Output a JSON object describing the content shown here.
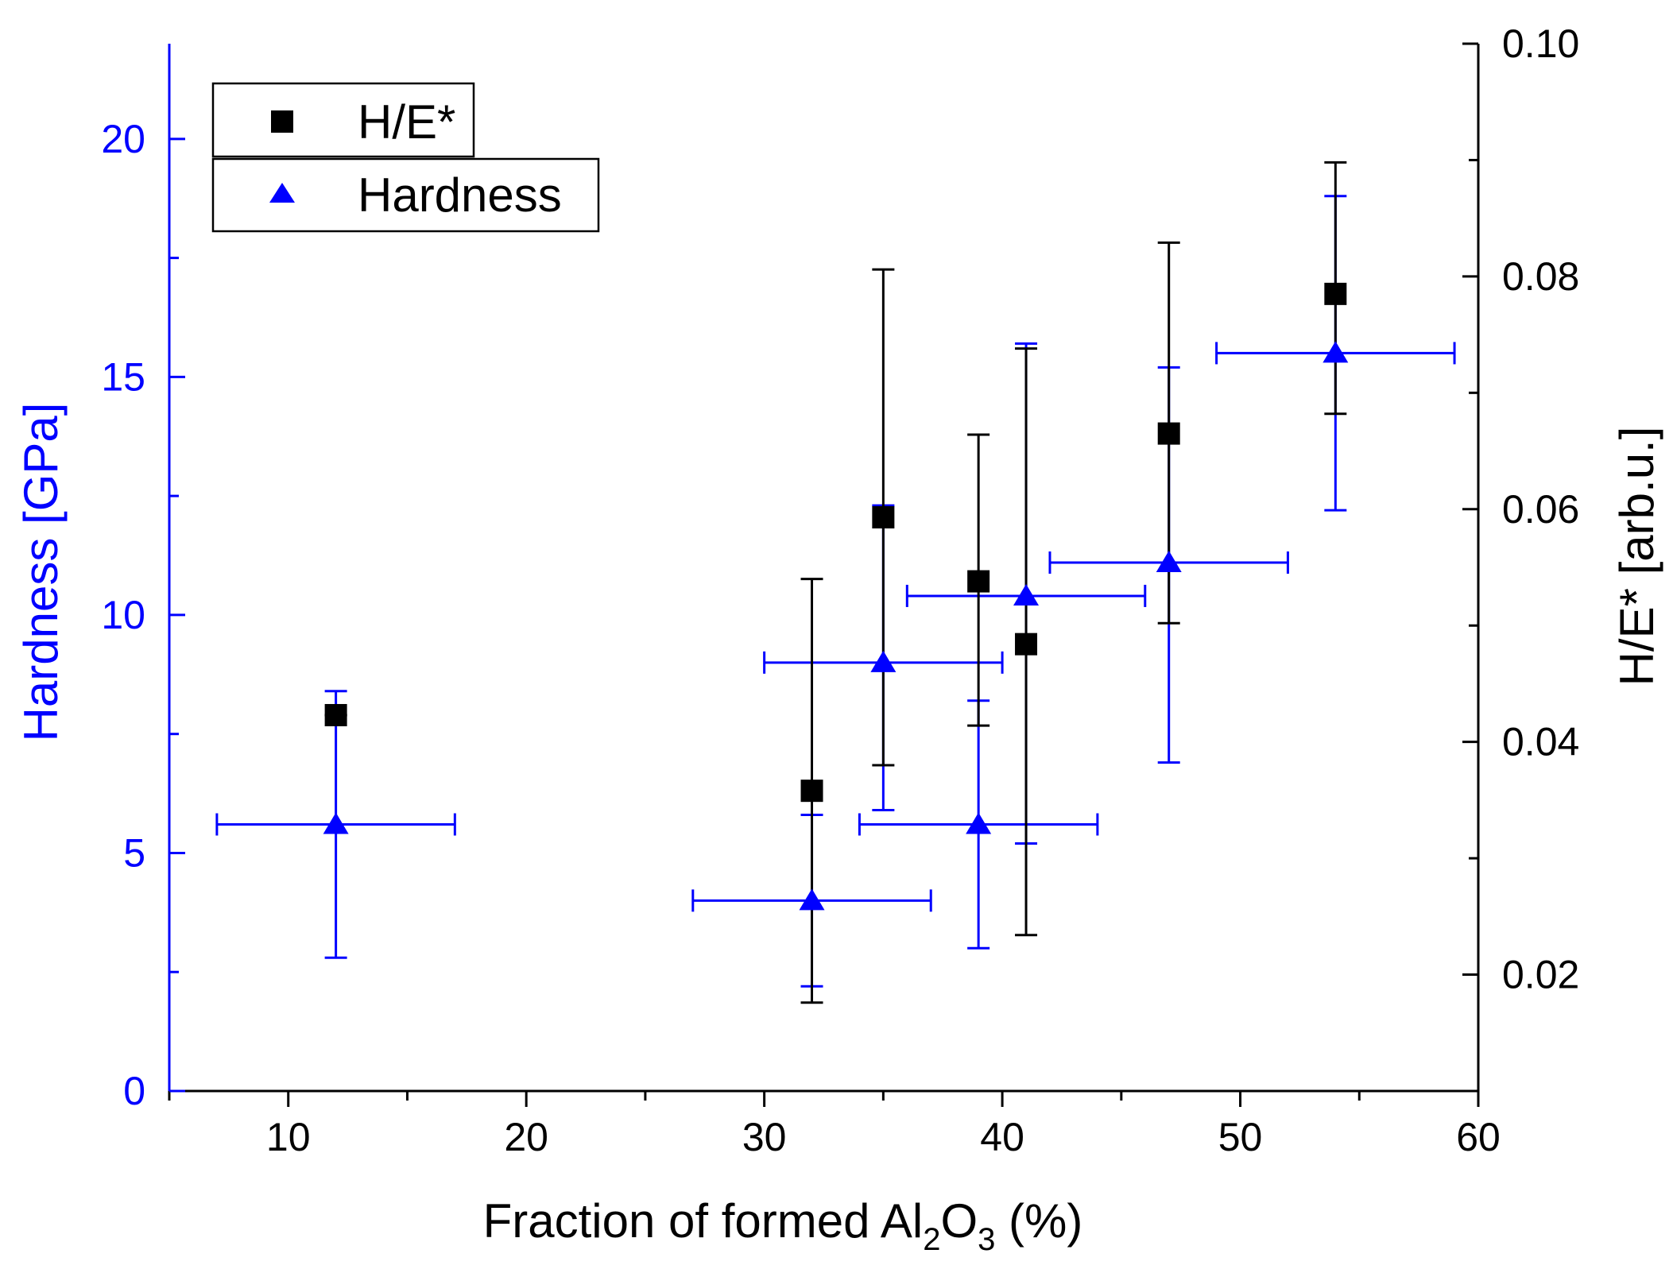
{
  "chart_data": {
    "type": "scatter",
    "title": "",
    "x_axis": {
      "label_parts": [
        "Fraction of formed Al",
        "2",
        "O",
        "3",
        " (%)"
      ],
      "range": [
        5,
        60
      ],
      "ticks": [
        10,
        20,
        30,
        40,
        50,
        60
      ],
      "tick_labels": [
        "10",
        "20",
        "30",
        "40",
        "50",
        "60"
      ],
      "minor_step": 5
    },
    "y_left": {
      "label": "Hardness [GPa]",
      "range": [
        0,
        22
      ],
      "ticks": [
        0,
        5,
        10,
        15,
        20
      ],
      "tick_labels": [
        "0",
        "5",
        "10",
        "15",
        "20"
      ],
      "minor_step": 2.5,
      "color": "#0000ff"
    },
    "y_right": {
      "label": "H/E* [arb.u.]",
      "range": [
        0.01,
        0.1
      ],
      "ticks": [
        0.02,
        0.04,
        0.06,
        0.08,
        0.1
      ],
      "tick_labels": [
        "0.02",
        "0.04",
        "0.06",
        "0.08",
        "0.10"
      ],
      "minor_step": 0.01,
      "color": "#000000"
    },
    "legend": {
      "position": "top-left",
      "entries": [
        {
          "label": "H/E*",
          "marker": "square",
          "color": "#000000"
        },
        {
          "label": "Hardness",
          "marker": "triangle",
          "color": "#0000ff"
        }
      ]
    },
    "series": [
      {
        "name": "H/E*",
        "axis": "right",
        "marker": "square",
        "color": "#000000",
        "points": [
          {
            "x": 12,
            "y": 0.0423,
            "y_low": 0.0423,
            "y_high": 0.0423
          },
          {
            "x": 32,
            "y": 0.0358,
            "y_low": 0.0176,
            "y_high": 0.054
          },
          {
            "x": 35,
            "y": 0.0593,
            "y_low": 0.038,
            "y_high": 0.0806
          },
          {
            "x": 39,
            "y": 0.0538,
            "y_low": 0.0414,
            "y_high": 0.0664
          },
          {
            "x": 41,
            "y": 0.0484,
            "y_low": 0.0234,
            "y_high": 0.0738
          },
          {
            "x": 47,
            "y": 0.0665,
            "y_low": 0.0502,
            "y_high": 0.0829
          },
          {
            "x": 54,
            "y": 0.0785,
            "y_low": 0.0682,
            "y_high": 0.0898
          }
        ]
      },
      {
        "name": "Hardness",
        "axis": "left",
        "marker": "triangle",
        "color": "#0000ff",
        "points": [
          {
            "x": 12,
            "y": 5.6,
            "y_low": 2.8,
            "y_high": 8.4,
            "x_low": 7,
            "x_high": 17
          },
          {
            "x": 32,
            "y": 4.0,
            "y_low": 2.2,
            "y_high": 5.8,
            "x_low": 27,
            "x_high": 37
          },
          {
            "x": 35,
            "y": 9.0,
            "y_low": 5.9,
            "y_high": 12.3,
            "x_low": 30,
            "x_high": 40
          },
          {
            "x": 39,
            "y": 5.6,
            "y_low": 3.0,
            "y_high": 8.2,
            "x_low": 34,
            "x_high": 44
          },
          {
            "x": 41,
            "y": 10.4,
            "y_low": 5.2,
            "y_high": 15.7,
            "x_low": 36,
            "x_high": 46
          },
          {
            "x": 47,
            "y": 11.1,
            "y_low": 6.9,
            "y_high": 15.2,
            "x_low": 42,
            "x_high": 52
          },
          {
            "x": 54,
            "y": 15.5,
            "y_low": 12.2,
            "y_high": 18.8,
            "x_low": 49,
            "x_high": 59
          }
        ]
      }
    ]
  }
}
